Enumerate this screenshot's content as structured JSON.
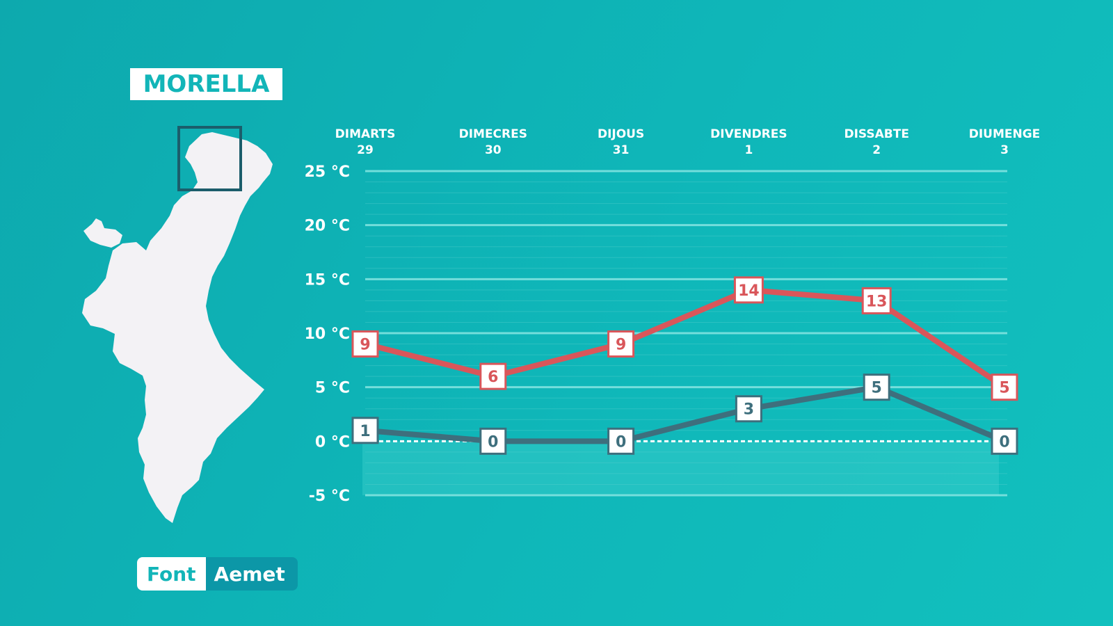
{
  "location_title": "MORELLA",
  "source": {
    "label": "Font",
    "value": "Aemet"
  },
  "colors": {
    "background": "#0fb4b7",
    "max_series": "#d9565a",
    "min_series": "#3e6f7d",
    "grid": "#7fe3e0"
  },
  "chart_data": {
    "type": "line",
    "categories": [
      {
        "day": "DIMARTS",
        "date": "29"
      },
      {
        "day": "DIMECRES",
        "date": "30"
      },
      {
        "day": "DIJOUS",
        "date": "31"
      },
      {
        "day": "DIVENDRES",
        "date": "1"
      },
      {
        "day": "DISSABTE",
        "date": "2"
      },
      {
        "day": "DIUMENGE",
        "date": "3"
      }
    ],
    "series": [
      {
        "key": "max",
        "values": [
          9,
          6,
          9,
          14,
          13,
          5
        ]
      },
      {
        "key": "min",
        "values": [
          1,
          0,
          0,
          3,
          5,
          0
        ]
      }
    ],
    "y_ticks": [
      "25 °C",
      "20 °C",
      "15 °C",
      "10 °C",
      "5 °C",
      "0 °C",
      "-5 °C"
    ],
    "y_tick_values": [
      25,
      20,
      15,
      10,
      5,
      0,
      -5
    ],
    "ylim": [
      -5,
      25
    ],
    "grid": true,
    "legend": "none"
  }
}
